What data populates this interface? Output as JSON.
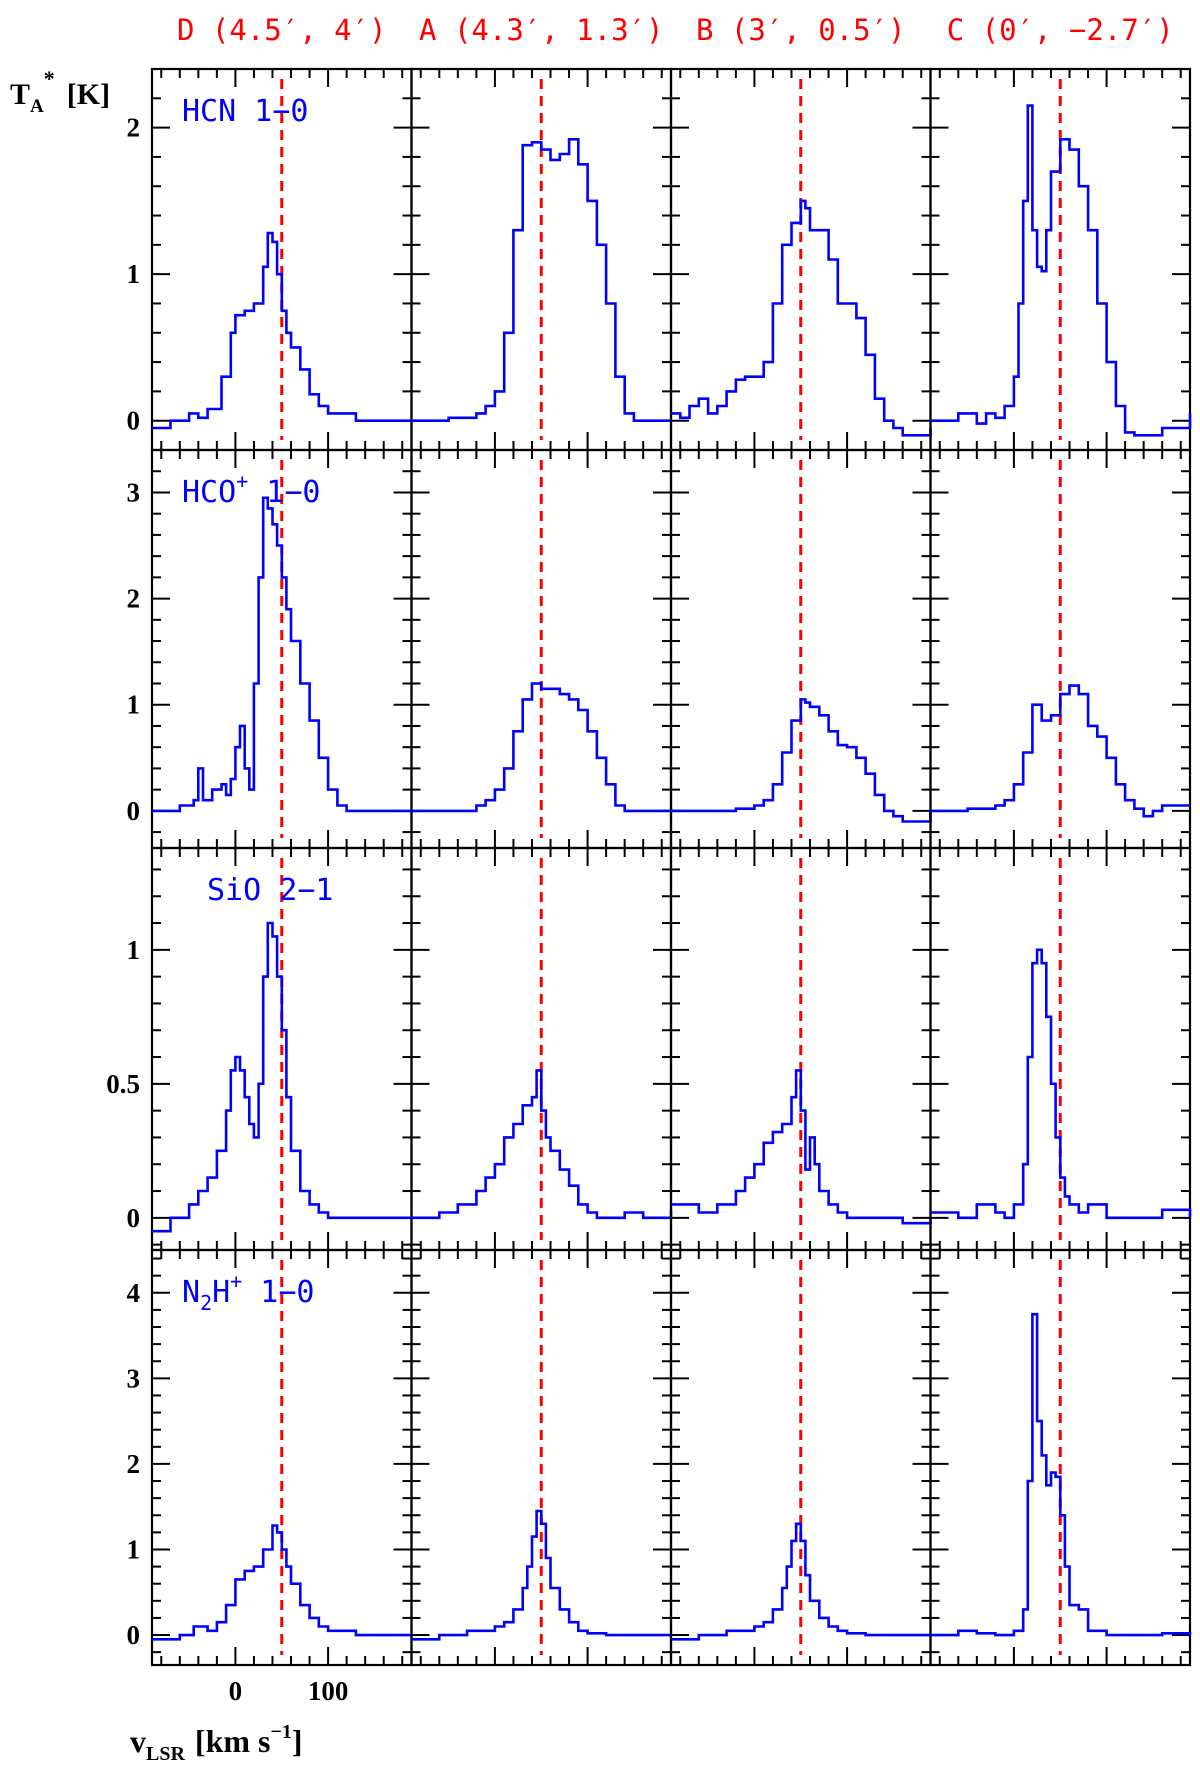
{
  "colors": {
    "spectrum": "#0000ff",
    "marker": "#ff0000",
    "frame": "#000000",
    "background": "#ffffff"
  },
  "y_axis_label": {
    "main": "T",
    "sub": "A",
    "sup": "*",
    "unit": "[K]"
  },
  "x_axis_label": {
    "main": "v",
    "sub": "LSR",
    "unit_before": "[km s",
    "unit_exp": "−1",
    "unit_after": "]"
  },
  "columns": [
    {
      "label": "D (4.5′, 4′)"
    },
    {
      "label": "A (4.3′, 1.3′)"
    },
    {
      "label": "B (3′, 0.5′)"
    },
    {
      "label": "C (0′, −2.7′)"
    }
  ],
  "rows": [
    {
      "line": "HCN 1−0",
      "line_base": "HCN",
      "line_sup": "",
      "line_sub": "",
      "line_tail": " 1−0"
    },
    {
      "line": "HCO+ 1−0",
      "line_base": "HCO",
      "line_sup": "+",
      "line_sub": "",
      "line_tail": " 1−0"
    },
    {
      "line": "SiO 2−1",
      "line_base": "SiO 2−1",
      "line_sup": "",
      "line_sub": "",
      "line_tail": ""
    },
    {
      "line": "N2H+ 1−0",
      "line_base": "N",
      "line_sub": "2",
      "line_mid": "H",
      "line_sup": "+",
      "line_tail": " 1−0"
    }
  ],
  "chart_data": {
    "type": "line",
    "grid": false,
    "xlim": [
      -90,
      190
    ],
    "x_ticks_labeled": [
      0,
      100
    ],
    "x_tick_labels": [
      "0",
      "100"
    ],
    "marker_velocities": [
      50,
      50,
      50,
      50
    ],
    "rows": [
      {
        "ylim": [
          -0.2,
          2.4
        ],
        "y_ticks": [
          0,
          1,
          2
        ],
        "y_tick_labels": [
          "0",
          "1",
          "2"
        ],
        "panels": [
          {
            "column": "D",
            "x": [
              -90,
              -70,
              -50,
              -40,
              -30,
              -15,
              -5,
              0,
              10,
              20,
              30,
              35,
              40,
              45,
              50,
              55,
              60,
              70,
              80,
              90,
              100,
              130,
              160,
              190
            ],
            "y": [
              -0.05,
              0,
              0.05,
              0.02,
              0.08,
              0.3,
              0.6,
              0.72,
              0.75,
              0.8,
              1.05,
              1.28,
              1.22,
              1.0,
              0.75,
              0.6,
              0.5,
              0.35,
              0.18,
              0.1,
              0.05,
              0,
              0,
              0
            ]
          },
          {
            "column": "A",
            "x": [
              -90,
              -50,
              -20,
              -10,
              0,
              10,
              20,
              30,
              40,
              50,
              60,
              70,
              80,
              90,
              100,
              110,
              120,
              130,
              140,
              150,
              160,
              190
            ],
            "y": [
              0,
              0.02,
              0.05,
              0.1,
              0.2,
              0.6,
              1.3,
              1.88,
              1.9,
              1.85,
              1.78,
              1.82,
              1.92,
              1.75,
              1.5,
              1.2,
              0.8,
              0.3,
              0.05,
              0,
              0,
              0
            ]
          },
          {
            "column": "B",
            "x": [
              -90,
              -80,
              -70,
              -60,
              -50,
              -40,
              -30,
              -20,
              -10,
              0,
              10,
              20,
              30,
              40,
              50,
              55,
              60,
              70,
              80,
              90,
              100,
              110,
              120,
              130,
              140,
              150,
              160,
              190
            ],
            "y": [
              0.05,
              0.02,
              0.1,
              0.15,
              0.05,
              0.1,
              0.2,
              0.28,
              0.3,
              0.3,
              0.4,
              0.8,
              1.2,
              1.35,
              1.5,
              1.45,
              1.3,
              1.3,
              1.1,
              0.8,
              0.8,
              0.7,
              0.45,
              0.15,
              0.0,
              -0.05,
              -0.1,
              -0.05
            ]
          },
          {
            "column": "C",
            "x": [
              -90,
              -60,
              -40,
              -30,
              -20,
              -10,
              0,
              5,
              10,
              15,
              20,
              25,
              30,
              35,
              40,
              50,
              60,
              70,
              80,
              90,
              100,
              110,
              120,
              130,
              160,
              190
            ],
            "y": [
              0,
              0.05,
              -0.02,
              0.05,
              0.02,
              0.1,
              0.3,
              0.8,
              1.5,
              2.15,
              1.3,
              1.05,
              1.02,
              1.3,
              1.7,
              1.92,
              1.85,
              1.6,
              1.3,
              0.8,
              0.4,
              0.1,
              -0.08,
              -0.1,
              -0.05,
              0.05
            ]
          }
        ]
      },
      {
        "ylim": [
          -0.35,
          3.4
        ],
        "y_ticks": [
          0,
          1,
          2,
          3
        ],
        "y_tick_labels": [
          "0",
          "1",
          "2",
          "3"
        ],
        "panels": [
          {
            "column": "D",
            "x": [
              -90,
              -60,
              -45,
              -40,
              -35,
              -25,
              -15,
              -10,
              -5,
              0,
              5,
              10,
              15,
              20,
              25,
              30,
              35,
              40,
              45,
              50,
              55,
              60,
              70,
              80,
              90,
              100,
              110,
              120,
              160,
              190
            ],
            "y": [
              0,
              0.05,
              0.1,
              0.4,
              0.1,
              0.2,
              0.25,
              0.15,
              0.3,
              0.6,
              0.8,
              0.4,
              0.2,
              1.2,
              2.2,
              2.95,
              2.85,
              2.7,
              2.5,
              2.2,
              1.9,
              1.6,
              1.2,
              0.85,
              0.5,
              0.2,
              0.05,
              0,
              0,
              0
            ]
          },
          {
            "column": "A",
            "x": [
              -90,
              -50,
              -20,
              -10,
              0,
              10,
              20,
              30,
              40,
              50,
              60,
              70,
              80,
              90,
              100,
              110,
              120,
              130,
              140,
              160,
              190
            ],
            "y": [
              0,
              0,
              0.05,
              0.1,
              0.2,
              0.4,
              0.75,
              1.05,
              1.2,
              1.15,
              1.15,
              1.1,
              1.05,
              0.95,
              0.75,
              0.5,
              0.25,
              0.05,
              0,
              0,
              0.02
            ]
          },
          {
            "column": "B",
            "x": [
              -90,
              -50,
              -20,
              0,
              10,
              20,
              30,
              40,
              50,
              55,
              60,
              70,
              80,
              90,
              100,
              110,
              120,
              130,
              140,
              150,
              160,
              190
            ],
            "y": [
              0,
              0,
              0.02,
              0.05,
              0.1,
              0.25,
              0.55,
              0.85,
              1.05,
              1.02,
              0.98,
              0.9,
              0.75,
              0.62,
              0.6,
              0.5,
              0.35,
              0.15,
              0.0,
              -0.05,
              -0.1,
              0
            ]
          },
          {
            "column": "C",
            "x": [
              -90,
              -50,
              -20,
              -10,
              0,
              10,
              20,
              30,
              40,
              50,
              60,
              70,
              80,
              90,
              100,
              110,
              120,
              130,
              140,
              150,
              160,
              190
            ],
            "y": [
              0,
              0.02,
              0.05,
              0.1,
              0.25,
              0.55,
              1.0,
              0.85,
              0.9,
              1.1,
              1.18,
              1.1,
              0.8,
              0.7,
              0.5,
              0.25,
              0.1,
              0.02,
              -0.05,
              0,
              0.05,
              0.05
            ]
          }
        ]
      },
      {
        "ylim": [
          -0.12,
          1.38
        ],
        "y_ticks": [
          0,
          0.5,
          1
        ],
        "y_tick_labels": [
          "0",
          "0.5",
          "1"
        ],
        "panels": [
          {
            "column": "D",
            "x": [
              -90,
              -70,
              -50,
              -40,
              -30,
              -20,
              -10,
              -5,
              0,
              5,
              10,
              15,
              20,
              25,
              30,
              35,
              40,
              45,
              50,
              55,
              60,
              70,
              80,
              90,
              100,
              130,
              160,
              190
            ],
            "y": [
              -0.05,
              0,
              0.05,
              0.1,
              0.15,
              0.25,
              0.4,
              0.55,
              0.6,
              0.55,
              0.45,
              0.35,
              0.3,
              0.5,
              0.9,
              1.1,
              1.05,
              0.9,
              0.7,
              0.45,
              0.25,
              0.1,
              0.05,
              0.02,
              0,
              0,
              0,
              0
            ]
          },
          {
            "column": "A",
            "x": [
              -90,
              -60,
              -40,
              -20,
              -10,
              0,
              10,
              20,
              30,
              40,
              45,
              50,
              55,
              60,
              70,
              80,
              90,
              100,
              110,
              120,
              140,
              160,
              190
            ],
            "y": [
              0,
              0.02,
              0.05,
              0.1,
              0.15,
              0.2,
              0.3,
              0.35,
              0.42,
              0.45,
              0.55,
              0.4,
              0.3,
              0.25,
              0.18,
              0.12,
              0.05,
              0.02,
              0,
              0,
              0.02,
              0,
              0.03
            ]
          },
          {
            "column": "B",
            "x": [
              -90,
              -60,
              -40,
              -20,
              -10,
              0,
              10,
              20,
              30,
              40,
              45,
              50,
              55,
              60,
              65,
              70,
              80,
              90,
              100,
              120,
              140,
              160,
              190
            ],
            "y": [
              0.05,
              0.02,
              0.05,
              0.1,
              0.15,
              0.2,
              0.28,
              0.32,
              0.35,
              0.45,
              0.55,
              0.4,
              0.18,
              0.3,
              0.2,
              0.1,
              0.05,
              0.02,
              0,
              0,
              0,
              -0.02,
              0
            ]
          },
          {
            "column": "C",
            "x": [
              -90,
              -60,
              -40,
              -20,
              -10,
              0,
              10,
              15,
              20,
              25,
              30,
              35,
              40,
              45,
              50,
              55,
              60,
              70,
              80,
              100,
              130,
              160,
              190
            ],
            "y": [
              0.02,
              0,
              0.05,
              0.02,
              0,
              0.05,
              0.2,
              0.6,
              0.95,
              1.0,
              0.95,
              0.75,
              0.5,
              0.3,
              0.15,
              0.08,
              0.05,
              0.02,
              0.05,
              0,
              0,
              0.03,
              0
            ]
          }
        ]
      },
      {
        "ylim": [
          -0.35,
          4.5
        ],
        "y_ticks": [
          0,
          1,
          2,
          3,
          4
        ],
        "y_tick_labels": [
          "0",
          "1",
          "2",
          "3",
          "4"
        ],
        "panels": [
          {
            "column": "D",
            "x": [
              -90,
              -60,
              -45,
              -30,
              -20,
              -10,
              0,
              10,
              20,
              30,
              40,
              45,
              50,
              55,
              60,
              70,
              80,
              90,
              100,
              130,
              160,
              190
            ],
            "y": [
              -0.05,
              0,
              0.1,
              0.05,
              0.15,
              0.35,
              0.65,
              0.75,
              0.8,
              1.0,
              1.28,
              1.2,
              1.0,
              0.8,
              0.6,
              0.35,
              0.2,
              0.1,
              0.05,
              0,
              0,
              0
            ]
          },
          {
            "column": "A",
            "x": [
              -90,
              -60,
              -30,
              -10,
              0,
              10,
              20,
              30,
              35,
              40,
              45,
              50,
              55,
              60,
              70,
              80,
              90,
              100,
              120,
              160,
              190
            ],
            "y": [
              -0.05,
              0,
              0.05,
              0.05,
              0.1,
              0.15,
              0.3,
              0.55,
              0.8,
              1.15,
              1.45,
              1.3,
              0.9,
              0.55,
              0.3,
              0.15,
              0.05,
              0.02,
              0,
              0,
              0
            ]
          },
          {
            "column": "B",
            "x": [
              -90,
              -60,
              -30,
              -10,
              0,
              10,
              20,
              30,
              35,
              40,
              45,
              50,
              55,
              60,
              70,
              80,
              90,
              100,
              120,
              160,
              190
            ],
            "y": [
              -0.05,
              0,
              0.05,
              0.05,
              0.1,
              0.15,
              0.3,
              0.55,
              0.8,
              1.1,
              1.3,
              1.1,
              0.7,
              0.4,
              0.2,
              0.1,
              0.05,
              0.02,
              0,
              0,
              0
            ]
          },
          {
            "column": "C",
            "x": [
              -90,
              -60,
              -40,
              -20,
              0,
              10,
              15,
              20,
              25,
              30,
              35,
              40,
              45,
              50,
              55,
              60,
              70,
              80,
              100,
              130,
              160,
              190
            ],
            "y": [
              0,
              0.05,
              0.02,
              0,
              0.05,
              0.3,
              1.8,
              3.75,
              2.5,
              2.1,
              1.75,
              1.9,
              1.85,
              1.4,
              0.8,
              0.35,
              0.3,
              0.05,
              0,
              0,
              0.02,
              0
            ]
          }
        ]
      }
    ]
  }
}
